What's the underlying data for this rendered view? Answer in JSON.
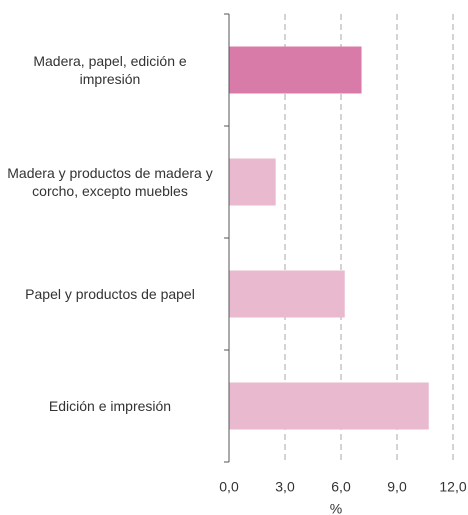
{
  "chart_data": {
    "type": "barh",
    "categories": [
      "Madera, papel, edición e impresión",
      "Madera y productos de madera y corcho, excepto muebles",
      "Papel y productos de papel",
      "Edición e impresión"
    ],
    "values": [
      7.1,
      2.5,
      6.2,
      10.7
    ],
    "colors": [
      "#d87ba9",
      "#e8b9cf",
      "#e8b9cf",
      "#e8b9cf"
    ],
    "xlabel": "%",
    "xlim": [
      0,
      12
    ],
    "xticks": [
      {
        "value": 0,
        "label": "0,0"
      },
      {
        "value": 3,
        "label": "3,0"
      },
      {
        "value": 6,
        "label": "6,0"
      },
      {
        "value": 9,
        "label": "9,0"
      },
      {
        "value": 12,
        "label": "12,0"
      }
    ],
    "grid": true
  }
}
